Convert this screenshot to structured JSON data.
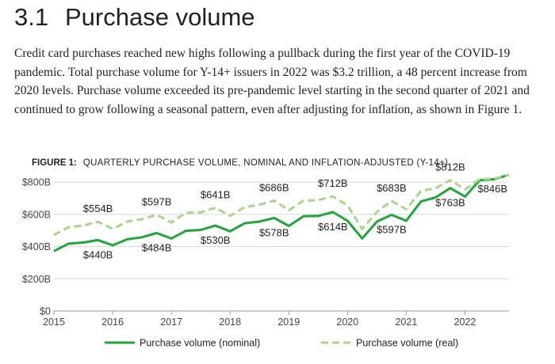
{
  "section": {
    "number": "3.1",
    "title": "Purchase volume"
  },
  "intro_text": "Credit card purchases reached new highs following a pullback during the first year of the COVID-19 pandemic. Total purchase volume for Y-14+ issuers in 2022 was $3.2 trillion, a 48 percent increase from 2020 levels. Purchase volume exceeded its pre-pandemic level starting in the second quarter of 2021 and continued to grow following a seasonal pattern, even after adjusting for inflation, as shown in Figure 1.",
  "figure": {
    "label": "FIGURE 1:",
    "title": "QUARTERLY PURCHASE VOLUME, NOMINAL AND INFLATION-ADJUSTED (Y-14+)"
  },
  "chart_data": {
    "type": "line",
    "x_start": 2015,
    "x_step": 0.25,
    "xlim": [
      2015,
      2022.75
    ],
    "ylim": [
      0,
      850
    ],
    "x_ticks": [
      2015,
      2016,
      2017,
      2018,
      2019,
      2020,
      2021,
      2022
    ],
    "x_tick_labels": [
      "2015",
      "2016",
      "2017",
      "2018",
      "2019",
      "2020",
      "2021",
      "2022"
    ],
    "y_ticks": [
      0,
      200,
      400,
      600,
      800
    ],
    "y_tick_labels": [
      "$0",
      "$200B",
      "$400B",
      "$600B",
      "$800B"
    ],
    "grid": true,
    "legend_position": "bottom",
    "series": [
      {
        "name": "Purchase volume (nominal)",
        "color": "#22a53a",
        "style": "solid",
        "values": [
          372,
          418,
          425,
          440,
          408,
          445,
          458,
          484,
          450,
          498,
          503,
          530,
          495,
          545,
          555,
          578,
          528,
          588,
          590,
          614,
          560,
          450,
          555,
          597,
          560,
          680,
          705,
          763,
          710,
          812,
          818,
          846
        ]
      },
      {
        "name": "Purchase volume (real)",
        "color": "#a8d68a",
        "style": "dashed",
        "values": [
          472,
          520,
          530,
          554,
          510,
          555,
          570,
          597,
          550,
          610,
          612,
          641,
          590,
          645,
          660,
          686,
          625,
          685,
          688,
          712,
          655,
          510,
          615,
          683,
          632,
          745,
          762,
          812,
          755,
          818,
          822,
          846
        ]
      }
    ],
    "annotations": [
      {
        "text": "$554B",
        "series": 1,
        "index": 3
      },
      {
        "text": "$440B",
        "series": 0,
        "index": 3
      },
      {
        "text": "$597B",
        "series": 1,
        "index": 7
      },
      {
        "text": "$484B",
        "series": 0,
        "index": 7
      },
      {
        "text": "$641B",
        "series": 1,
        "index": 11
      },
      {
        "text": "$530B",
        "series": 0,
        "index": 11
      },
      {
        "text": "$686B",
        "series": 1,
        "index": 15
      },
      {
        "text": "$578B",
        "series": 0,
        "index": 15
      },
      {
        "text": "$712B",
        "series": 1,
        "index": 19
      },
      {
        "text": "$614B",
        "series": 0,
        "index": 19
      },
      {
        "text": "$683B",
        "series": 1,
        "index": 23
      },
      {
        "text": "$597B",
        "series": 0,
        "index": 23
      },
      {
        "text": "$812B",
        "series": 1,
        "index": 27
      },
      {
        "text": "$763B",
        "series": 0,
        "index": 27
      },
      {
        "text": "$846B",
        "series": 0,
        "index": 31
      }
    ]
  }
}
